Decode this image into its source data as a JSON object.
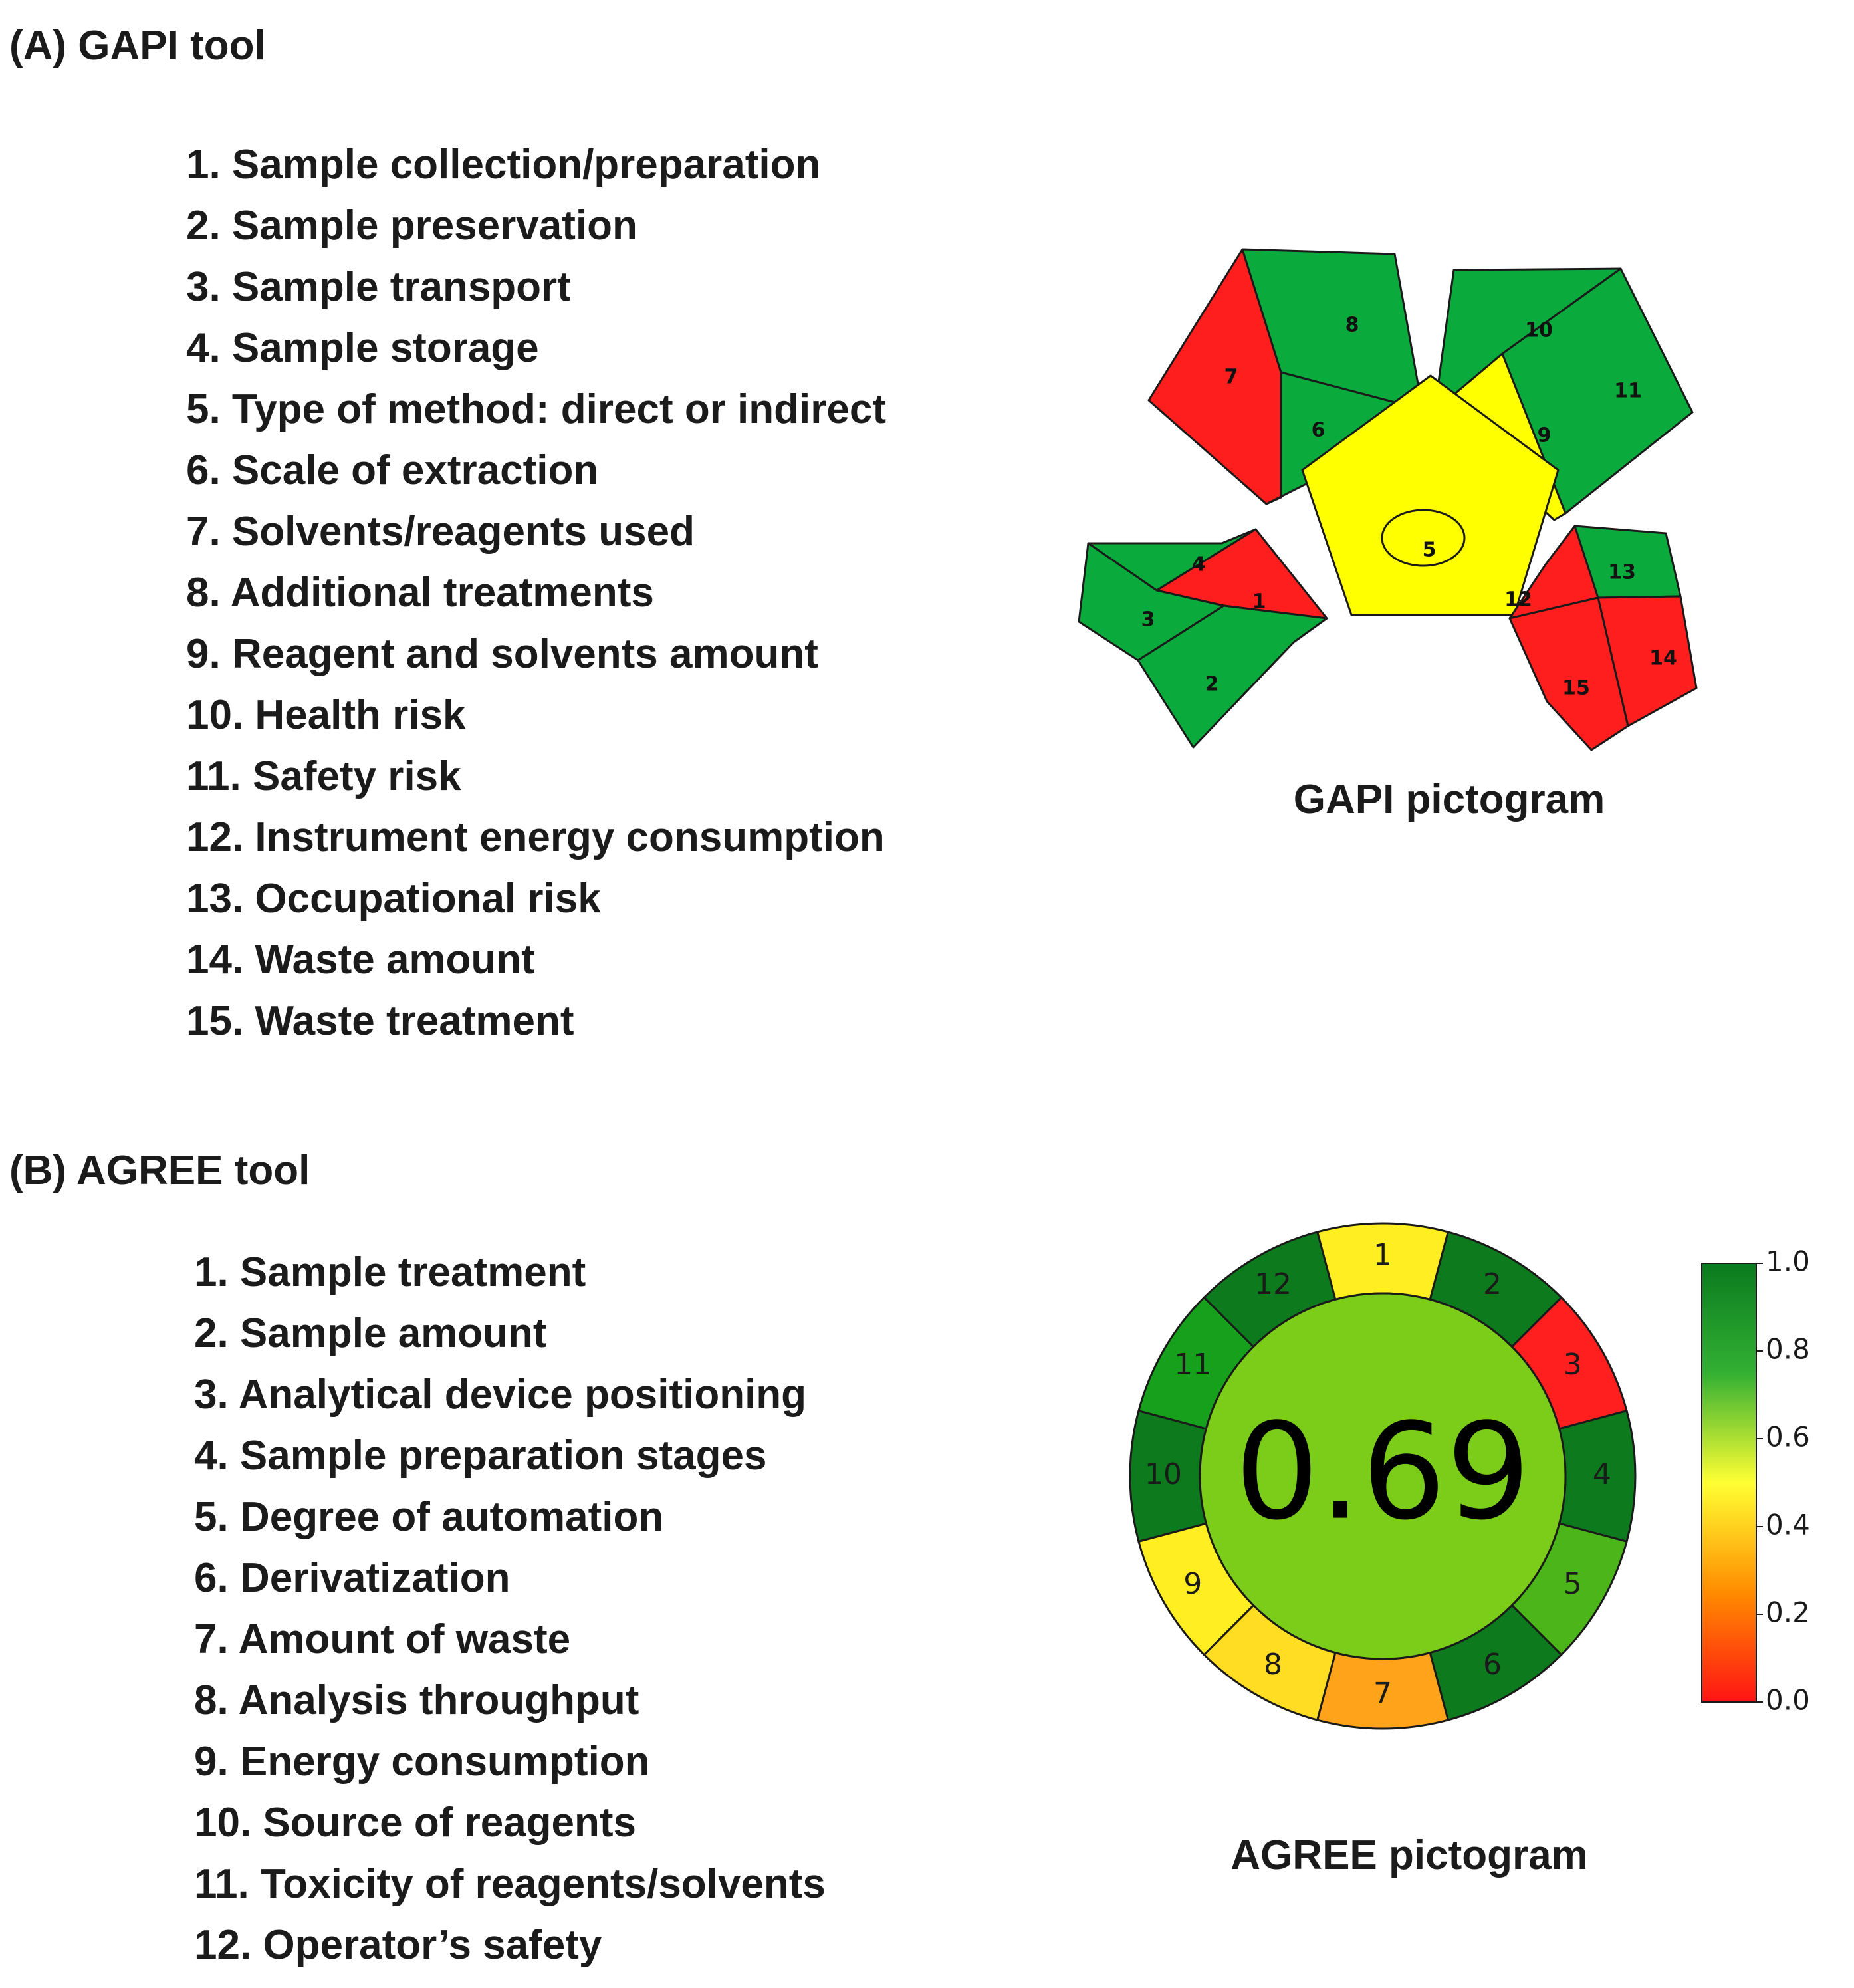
{
  "section_a": {
    "heading": "(A) GAPI tool",
    "items": [
      "1. Sample collection/preparation",
      "2. Sample preservation",
      "3. Sample transport",
      "4. Sample storage",
      "5. Type of method: direct or indirect",
      "6. Scale of extraction",
      "7. Solvents/reagents used",
      "8. Additional treatments",
      "9. Reagent and solvents amount",
      "10. Health risk",
      "11. Safety risk",
      "12. Instrument energy consumption",
      "13. Occupational risk",
      "14. Waste amount",
      "15. Waste treatment"
    ],
    "pictogram_caption": "GAPI pictogram",
    "pictogram_ratings": {
      "1": "red",
      "2": "green",
      "3": "green",
      "4": "green",
      "5": "yellow",
      "6": "green",
      "7": "red",
      "8": "green",
      "9": "yellow",
      "10": "green",
      "11": "green",
      "12": "red",
      "13": "green",
      "14": "red",
      "15": "red"
    }
  },
  "section_b": {
    "heading": "(B) AGREE tool",
    "items": [
      "1. Sample treatment",
      "2. Sample amount",
      "3. Analytical device positioning",
      "4. Sample preparation stages",
      "5. Degree of automation",
      "6. Derivatization",
      "7. Amount of waste",
      "8. Analysis throughput",
      "9. Energy consumption",
      "10. Source of reagents",
      "11. Toxicity of reagents/solvents",
      "12. Operator’s safety"
    ],
    "pictogram_caption": "AGREE pictogram",
    "score": "0.69",
    "segment_labels": [
      "1",
      "2",
      "3",
      "4",
      "5",
      "6",
      "7",
      "8",
      "9",
      "10",
      "11",
      "12"
    ],
    "segment_colors": [
      "#ffee22",
      "#0d7a1e",
      "#ff1f1f",
      "#0d7a1e",
      "#4cb51a",
      "#0d7a1e",
      "#ffa31a",
      "#ffdd22",
      "#ffee22",
      "#0d7a1e",
      "#16a01c",
      "#0d7a1e"
    ],
    "center_color": "#7ccc1a",
    "colorbar_ticks": [
      "1.0",
      "0.8",
      "0.6",
      "0.4",
      "0.2",
      "0.0"
    ]
  },
  "colors": {
    "green": "#0aab3c",
    "red": "#ff1e1e",
    "yellow": "#ffff00",
    "outline": "#1a1a1a"
  }
}
